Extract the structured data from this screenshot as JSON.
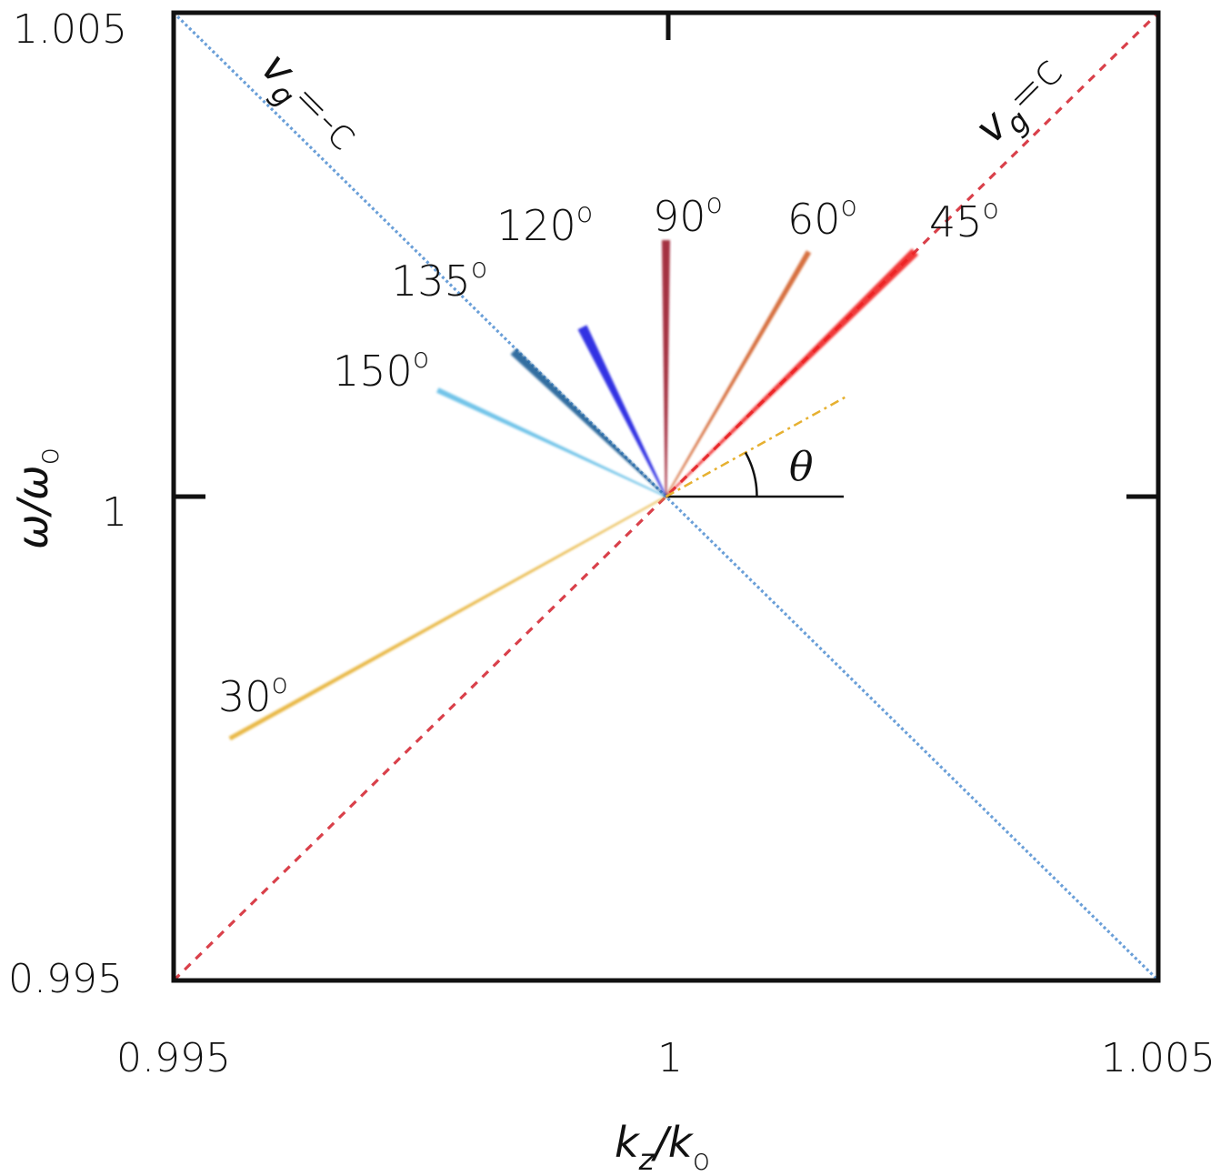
{
  "chart_data": {
    "type": "line",
    "xlabel": "k_z/k_o",
    "ylabel": "ω/ω_o",
    "xlim": [
      0.995,
      1.005
    ],
    "ylim": [
      0.995,
      1.005
    ],
    "x_ticks": [
      "0.995",
      "1",
      "1.005"
    ],
    "y_ticks": [
      "0.995",
      "1",
      "1.005"
    ],
    "reference_lines": [
      {
        "name": "v_g = c",
        "label": "v_g = c",
        "style": "dashed",
        "color": "#d9404a",
        "x": [
          0.995,
          1.005
        ],
        "y": [
          0.995,
          1.005
        ]
      },
      {
        "name": "v_g = -c",
        "label": "v_g = -c",
        "style": "dotted",
        "color": "#6a9fd8",
        "x": [
          0.995,
          1.005
        ],
        "y": [
          1.005,
          0.995
        ]
      }
    ],
    "series": [
      {
        "name": "30°",
        "label": "30°",
        "color": "#e6b030",
        "x": [
          0.99557,
          1.0
        ],
        "y": [
          0.9975,
          1.0
        ]
      },
      {
        "name": "45°",
        "label": "45°",
        "color": "#f02020",
        "x": [
          1.0,
          1.00253
        ],
        "y": [
          1.0,
          1.00253
        ]
      },
      {
        "name": "60°",
        "label": "60°",
        "color": "#d2602a",
        "x": [
          1.0,
          1.00145
        ],
        "y": [
          1.0,
          1.00253
        ]
      },
      {
        "name": "90°",
        "label": "90°",
        "color": "#9b1a2e",
        "x": [
          1.0,
          1.0
        ],
        "y": [
          1.0,
          1.00265
        ]
      },
      {
        "name": "120°",
        "label": "120°",
        "color": "#1a1ae0",
        "x": [
          0.99915,
          1.0
        ],
        "y": [
          1.00175,
          1.0
        ]
      },
      {
        "name": "135°",
        "label": "135°",
        "color": "#1f5f96",
        "x": [
          0.99845,
          1.0
        ],
        "y": [
          1.0015,
          1.0
        ]
      },
      {
        "name": "150°",
        "label": "150°",
        "color": "#62bde6",
        "x": [
          0.99768,
          1.0
        ],
        "y": [
          1.0011,
          1.0
        ]
      }
    ],
    "annotations": [
      {
        "text": "θ",
        "type": "angle",
        "color": "#e6b030"
      }
    ],
    "grid": false
  },
  "labels": {
    "xlabel_k": "k",
    "xlabel_k_sub": "z",
    "xlabel_slash": "/k",
    "xlabel_o_sub": "o",
    "ylabel_w": "ω/ω",
    "ylabel_o_sub": "o",
    "vg_pos_v": "v",
    "vg_pos_sub": "g",
    "vg_pos_rest": "=c",
    "vg_neg_v": "v",
    "vg_neg_sub": "g",
    "vg_neg_rest": "=-c",
    "theta": "θ"
  }
}
